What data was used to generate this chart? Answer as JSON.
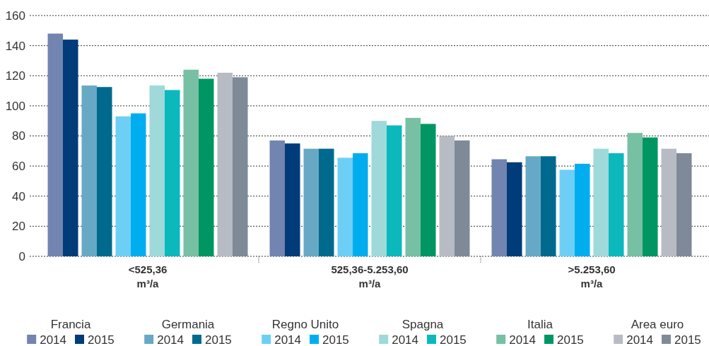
{
  "chart_data": {
    "type": "bar",
    "categories": [
      "<525,36\nm³/a",
      "525,36-5.253,60\nm³/a",
      ">5.253,60\nm³/a"
    ],
    "series": [
      {
        "name": "2014",
        "color": "#7284b0",
        "values": [
          148,
          77,
          64.5
        ]
      },
      {
        "name": "2015",
        "color": "#003b7a",
        "values": [
          144,
          75,
          62.5
        ]
      },
      {
        "name": "2014",
        "color": "#67a9c4",
        "values": [
          113.5,
          71.5,
          66.5
        ]
      },
      {
        "name": "2015",
        "color": "#006a8e",
        "values": [
          112.5,
          71.5,
          66.5
        ]
      },
      {
        "name": "2014",
        "color": "#6dcff6",
        "values": [
          93,
          65.5,
          57.5
        ]
      },
      {
        "name": "2015",
        "color": "#00aeef",
        "values": [
          95,
          68.5,
          61.5
        ]
      },
      {
        "name": "2014",
        "color": "#9fd9d9",
        "values": [
          113.5,
          90,
          71.5
        ]
      },
      {
        "name": "2015",
        "color": "#0bb9bd",
        "values": [
          110.5,
          87,
          68.5
        ]
      },
      {
        "name": "2014",
        "color": "#78c0a4",
        "values": [
          124,
          92,
          82
        ]
      },
      {
        "name": "2015",
        "color": "#009663",
        "values": [
          118,
          88,
          79
        ]
      },
      {
        "name": "2014",
        "color": "#b7bcc4",
        "values": [
          122,
          80,
          71.5
        ]
      },
      {
        "name": "2015",
        "color": "#7f8a99",
        "values": [
          119,
          77,
          68.5
        ]
      }
    ],
    "annotations": [
      "Francia",
      "Germania",
      "Regno Unito",
      "Spagna",
      "Italia",
      "Area euro"
    ],
    "ylim": [
      0,
      160
    ],
    "yticks": [
      0,
      20,
      40,
      60,
      80,
      100,
      120,
      140,
      160
    ],
    "grid": "y",
    "legend": "bottom"
  }
}
